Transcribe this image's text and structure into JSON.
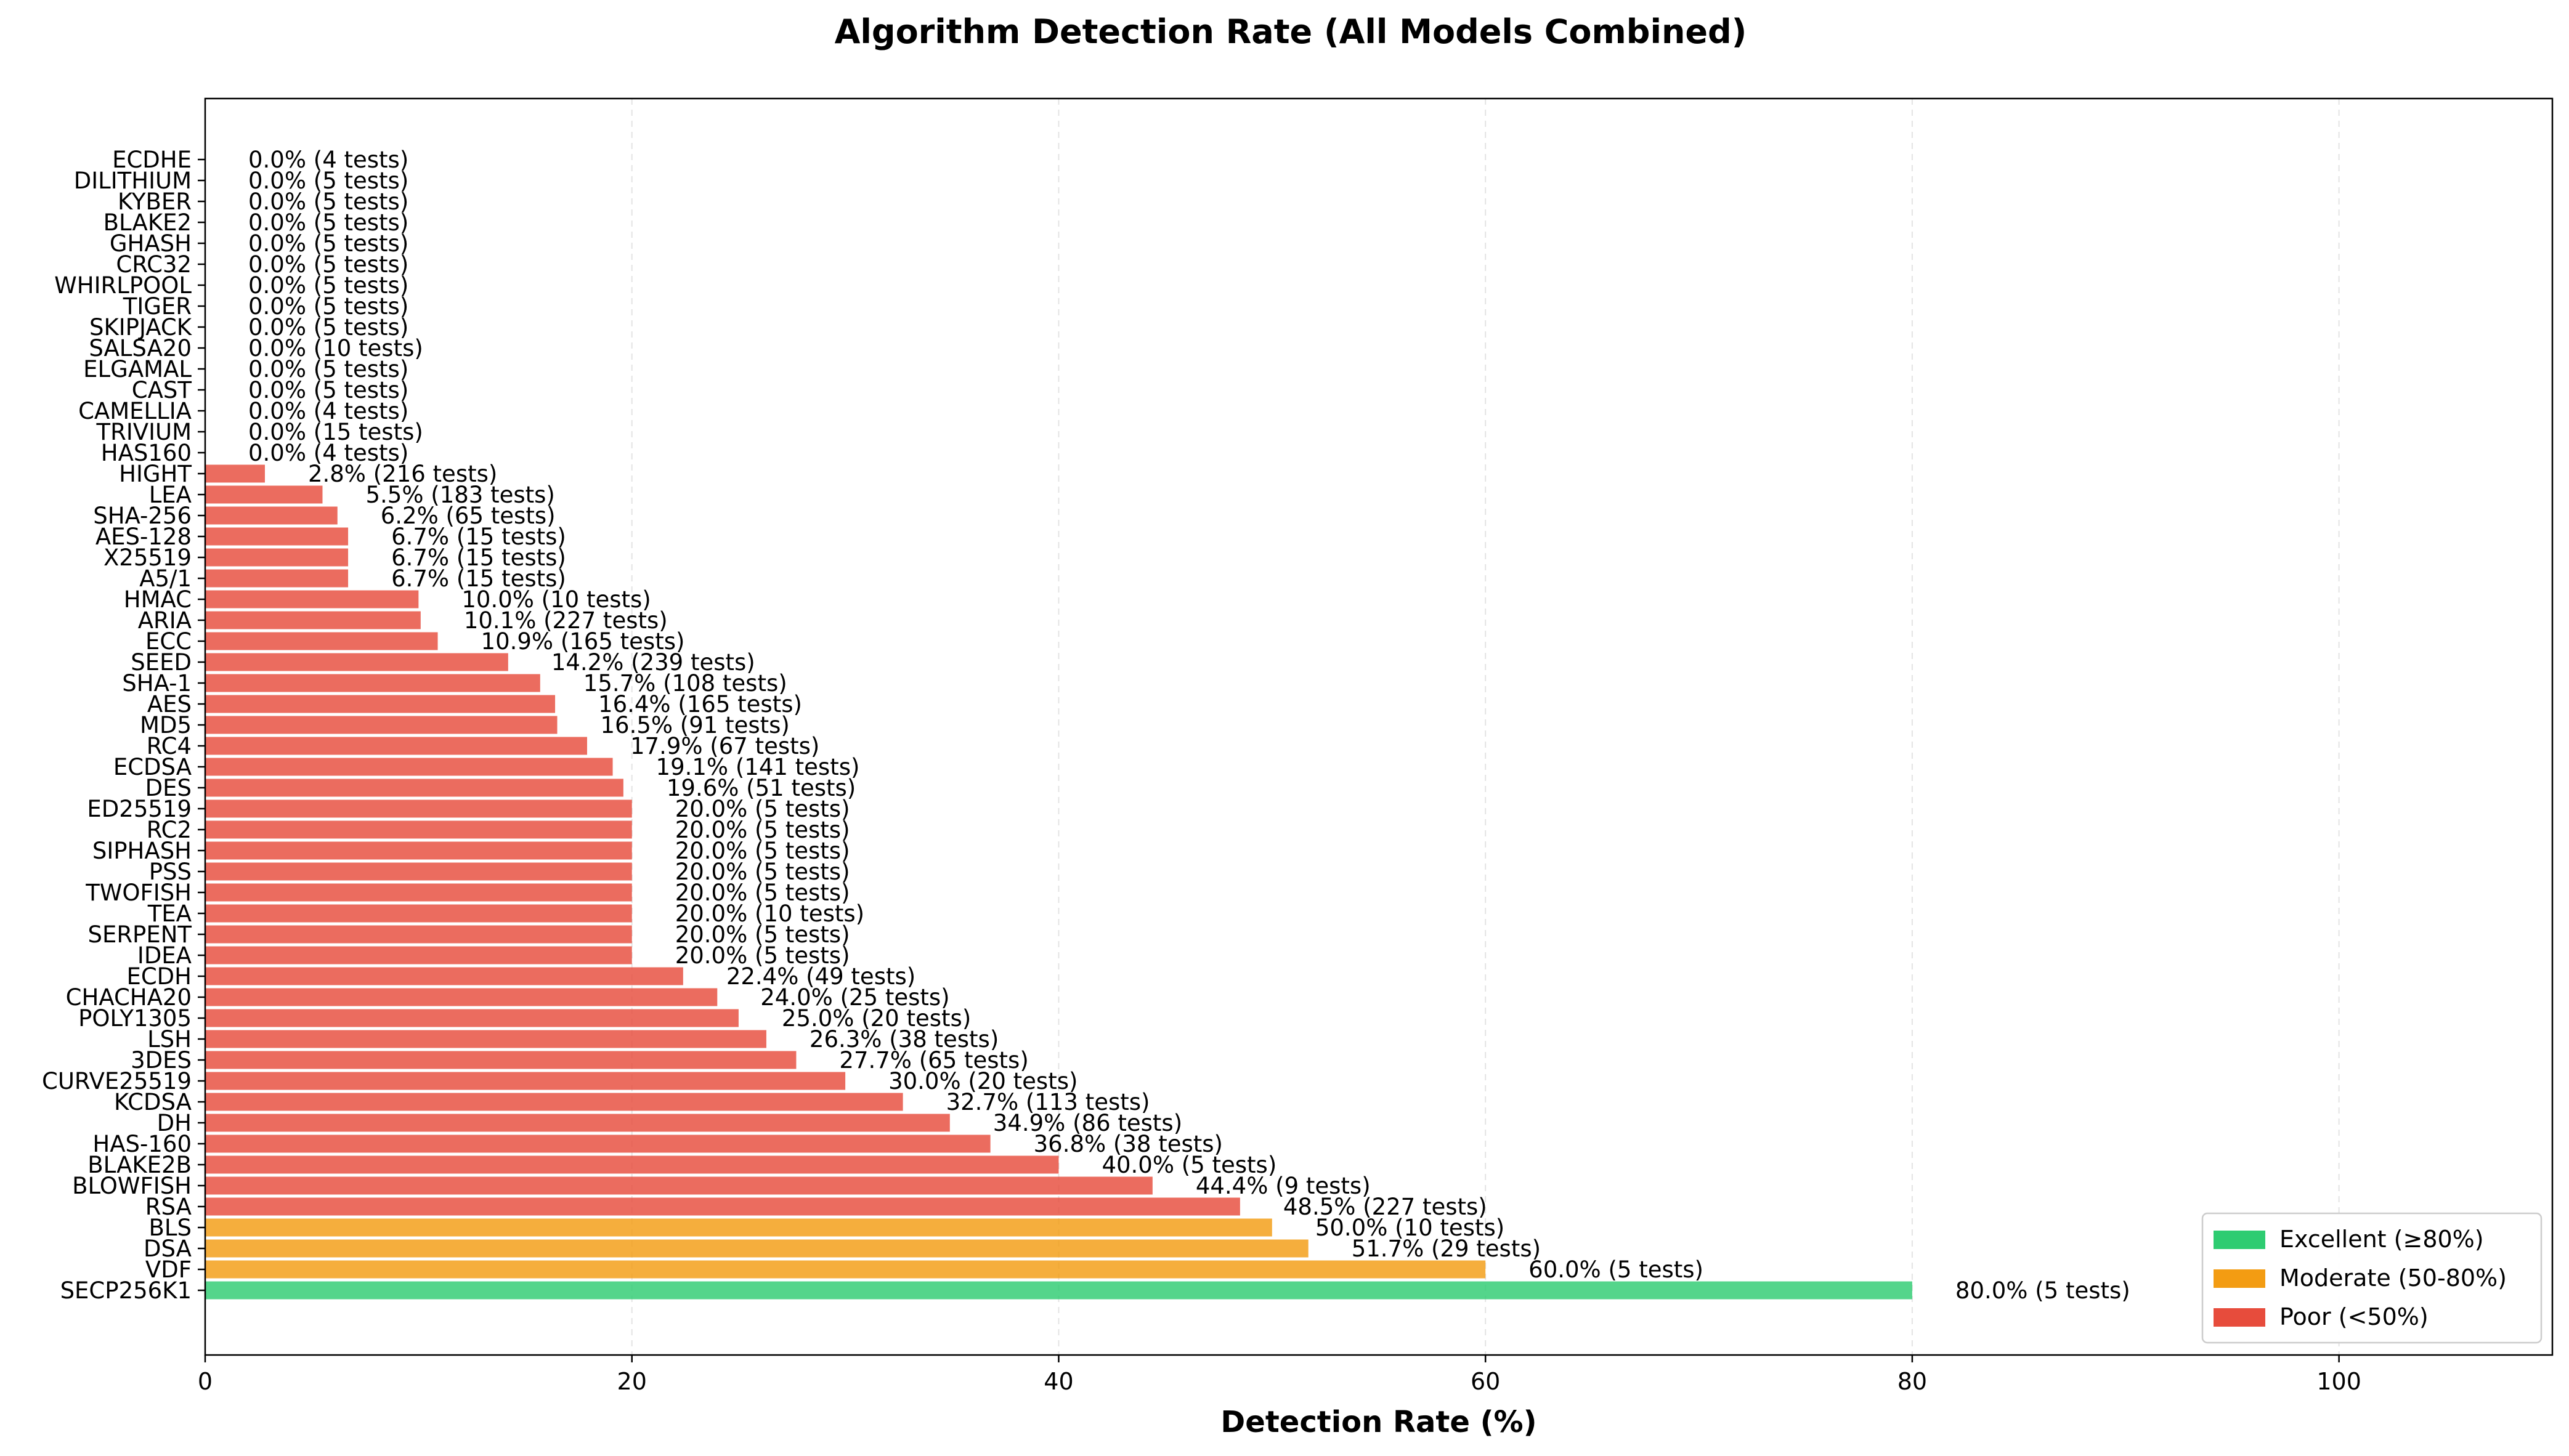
{
  "chart_data": {
    "type": "bar",
    "orientation": "horizontal",
    "title": "Algorithm Detection Rate (All Models Combined)",
    "xlabel": "Detection Rate (%)",
    "ylabel": "",
    "xlim": [
      0,
      110
    ],
    "xticks": [
      0,
      20,
      40,
      60,
      80,
      100
    ],
    "grid": "vertical dashed",
    "legend_position": "bottom-right",
    "legend": [
      {
        "label": "Excellent (≥80%)",
        "color": "#2ecc71"
      },
      {
        "label": "Moderate (50-80%)",
        "color": "#f39c12"
      },
      {
        "label": "Poor (<50%)",
        "color": "#e74c3c"
      }
    ],
    "bars": [
      {
        "category": "SECP256K1",
        "value": 80.0,
        "label": "80.0% (5 tests)",
        "class": "excellent"
      },
      {
        "category": "VDF",
        "value": 60.0,
        "label": "60.0% (5 tests)",
        "class": "moderate"
      },
      {
        "category": "DSA",
        "value": 51.7,
        "label": "51.7% (29 tests)",
        "class": "moderate"
      },
      {
        "category": "BLS",
        "value": 50.0,
        "label": "50.0% (10 tests)",
        "class": "moderate"
      },
      {
        "category": "RSA",
        "value": 48.5,
        "label": "48.5% (227 tests)",
        "class": "poor"
      },
      {
        "category": "BLOWFISH",
        "value": 44.4,
        "label": "44.4% (9 tests)",
        "class": "poor"
      },
      {
        "category": "BLAKE2B",
        "value": 40.0,
        "label": "40.0% (5 tests)",
        "class": "poor"
      },
      {
        "category": "HAS-160",
        "value": 36.8,
        "label": "36.8% (38 tests)",
        "class": "poor"
      },
      {
        "category": "DH",
        "value": 34.9,
        "label": "34.9% (86 tests)",
        "class": "poor"
      },
      {
        "category": "KCDSA",
        "value": 32.7,
        "label": "32.7% (113 tests)",
        "class": "poor"
      },
      {
        "category": "CURVE25519",
        "value": 30.0,
        "label": "30.0% (20 tests)",
        "class": "poor"
      },
      {
        "category": "3DES",
        "value": 27.7,
        "label": "27.7% (65 tests)",
        "class": "poor"
      },
      {
        "category": "LSH",
        "value": 26.3,
        "label": "26.3% (38 tests)",
        "class": "poor"
      },
      {
        "category": "POLY1305",
        "value": 25.0,
        "label": "25.0% (20 tests)",
        "class": "poor"
      },
      {
        "category": "CHACHA20",
        "value": 24.0,
        "label": "24.0% (25 tests)",
        "class": "poor"
      },
      {
        "category": "ECDH",
        "value": 22.4,
        "label": "22.4% (49 tests)",
        "class": "poor"
      },
      {
        "category": "IDEA",
        "value": 20.0,
        "label": "20.0% (5 tests)",
        "class": "poor"
      },
      {
        "category": "SERPENT",
        "value": 20.0,
        "label": "20.0% (5 tests)",
        "class": "poor"
      },
      {
        "category": "TEA",
        "value": 20.0,
        "label": "20.0% (10 tests)",
        "class": "poor"
      },
      {
        "category": "TWOFISH",
        "value": 20.0,
        "label": "20.0% (5 tests)",
        "class": "poor"
      },
      {
        "category": "PSS",
        "value": 20.0,
        "label": "20.0% (5 tests)",
        "class": "poor"
      },
      {
        "category": "SIPHASH",
        "value": 20.0,
        "label": "20.0% (5 tests)",
        "class": "poor"
      },
      {
        "category": "RC2",
        "value": 20.0,
        "label": "20.0% (5 tests)",
        "class": "poor"
      },
      {
        "category": "ED25519",
        "value": 20.0,
        "label": "20.0% (5 tests)",
        "class": "poor"
      },
      {
        "category": "DES",
        "value": 19.6,
        "label": "19.6% (51 tests)",
        "class": "poor"
      },
      {
        "category": "ECDSA",
        "value": 19.1,
        "label": "19.1% (141 tests)",
        "class": "poor"
      },
      {
        "category": "RC4",
        "value": 17.9,
        "label": "17.9% (67 tests)",
        "class": "poor"
      },
      {
        "category": "MD5",
        "value": 16.5,
        "label": "16.5% (91 tests)",
        "class": "poor"
      },
      {
        "category": "AES",
        "value": 16.4,
        "label": "16.4% (165 tests)",
        "class": "poor"
      },
      {
        "category": "SHA-1",
        "value": 15.7,
        "label": "15.7% (108 tests)",
        "class": "poor"
      },
      {
        "category": "SEED",
        "value": 14.2,
        "label": "14.2% (239 tests)",
        "class": "poor"
      },
      {
        "category": "ECC",
        "value": 10.9,
        "label": "10.9% (165 tests)",
        "class": "poor"
      },
      {
        "category": "ARIA",
        "value": 10.1,
        "label": "10.1% (227 tests)",
        "class": "poor"
      },
      {
        "category": "HMAC",
        "value": 10.0,
        "label": "10.0% (10 tests)",
        "class": "poor"
      },
      {
        "category": "A5/1",
        "value": 6.7,
        "label": "6.7% (15 tests)",
        "class": "poor"
      },
      {
        "category": "X25519",
        "value": 6.7,
        "label": "6.7% (15 tests)",
        "class": "poor"
      },
      {
        "category": "AES-128",
        "value": 6.7,
        "label": "6.7% (15 tests)",
        "class": "poor"
      },
      {
        "category": "SHA-256",
        "value": 6.2,
        "label": "6.2% (65 tests)",
        "class": "poor"
      },
      {
        "category": "LEA",
        "value": 5.5,
        "label": "5.5% (183 tests)",
        "class": "poor"
      },
      {
        "category": "HIGHT",
        "value": 2.8,
        "label": "2.8% (216 tests)",
        "class": "poor"
      },
      {
        "category": "HAS160",
        "value": 0.0,
        "label": "0.0% (4 tests)",
        "class": "poor"
      },
      {
        "category": "TRIVIUM",
        "value": 0.0,
        "label": "0.0% (15 tests)",
        "class": "poor"
      },
      {
        "category": "CAMELLIA",
        "value": 0.0,
        "label": "0.0% (4 tests)",
        "class": "poor"
      },
      {
        "category": "CAST",
        "value": 0.0,
        "label": "0.0% (5 tests)",
        "class": "poor"
      },
      {
        "category": "ELGAMAL",
        "value": 0.0,
        "label": "0.0% (5 tests)",
        "class": "poor"
      },
      {
        "category": "SALSA20",
        "value": 0.0,
        "label": "0.0% (10 tests)",
        "class": "poor"
      },
      {
        "category": "SKIPJACK",
        "value": 0.0,
        "label": "0.0% (5 tests)",
        "class": "poor"
      },
      {
        "category": "TIGER",
        "value": 0.0,
        "label": "0.0% (5 tests)",
        "class": "poor"
      },
      {
        "category": "WHIRLPOOL",
        "value": 0.0,
        "label": "0.0% (5 tests)",
        "class": "poor"
      },
      {
        "category": "CRC32",
        "value": 0.0,
        "label": "0.0% (5 tests)",
        "class": "poor"
      },
      {
        "category": "GHASH",
        "value": 0.0,
        "label": "0.0% (5 tests)",
        "class": "poor"
      },
      {
        "category": "BLAKE2",
        "value": 0.0,
        "label": "0.0% (5 tests)",
        "class": "poor"
      },
      {
        "category": "KYBER",
        "value": 0.0,
        "label": "0.0% (5 tests)",
        "class": "poor"
      },
      {
        "category": "DILITHIUM",
        "value": 0.0,
        "label": "0.0% (5 tests)",
        "class": "poor"
      },
      {
        "category": "ECDHE",
        "value": 0.0,
        "label": "0.0% (4 tests)",
        "class": "poor"
      }
    ]
  }
}
